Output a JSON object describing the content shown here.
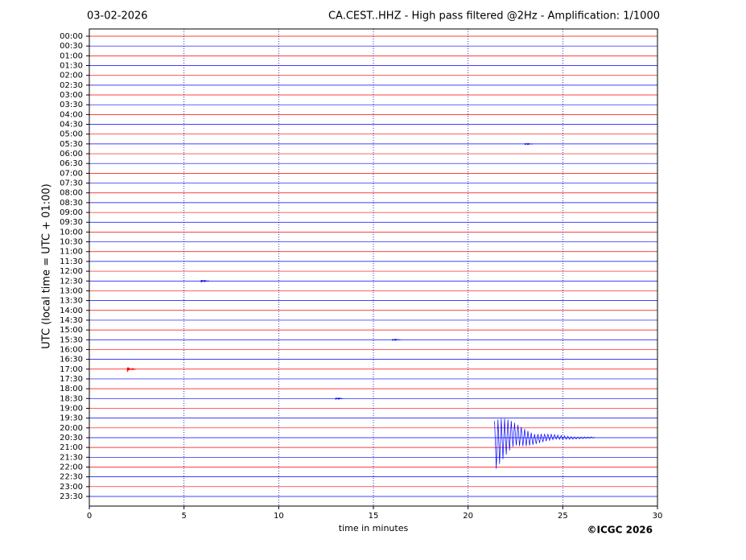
{
  "chart_data": {
    "type": "helicorder",
    "date": "03-02-2026",
    "title": "CA.CEST..HHZ - High pass filtered @2Hz - Amplification: 1/1000",
    "y_label": "UTC (local time = UTC + 01:00)",
    "x_label": "time in minutes",
    "copyright": "©ICGC 2026",
    "categories": [
      "00:00",
      "00:30",
      "01:00",
      "01:30",
      "02:00",
      "02:30",
      "03:00",
      "03:30",
      "04:00",
      "04:30",
      "05:00",
      "05:30",
      "06:00",
      "06:30",
      "07:00",
      "07:30",
      "08:00",
      "08:30",
      "09:00",
      "09:30",
      "10:00",
      "10:30",
      "11:00",
      "11:30",
      "12:00",
      "12:30",
      "13:00",
      "13:30",
      "14:00",
      "14:30",
      "15:00",
      "15:30",
      "16:00",
      "16:30",
      "17:00",
      "17:30",
      "18:00",
      "18:30",
      "19:00",
      "19:30",
      "20:00",
      "20:30",
      "21:00",
      "21:30",
      "22:00",
      "22:30",
      "23:00",
      "23:30"
    ],
    "trace_colors": [
      "#ff0000",
      "#0000ff"
    ],
    "xlim": [
      0,
      30
    ],
    "xticks": [
      0,
      5,
      10,
      15,
      20,
      25,
      30
    ],
    "grid": true,
    "events": [
      {
        "row": 34,
        "minute": 2,
        "amplitude": 0.3
      },
      {
        "row": 41,
        "minute": 21.4,
        "amplitude": 3.4
      },
      {
        "row": 25,
        "minute": 5.9,
        "amplitude": 0.15
      },
      {
        "row": 37,
        "minute": 13,
        "amplitude": 0.12
      },
      {
        "row": 11,
        "minute": 23,
        "amplitude": 0.1
      },
      {
        "row": 31,
        "minute": 16,
        "amplitude": 0.1
      }
    ]
  }
}
